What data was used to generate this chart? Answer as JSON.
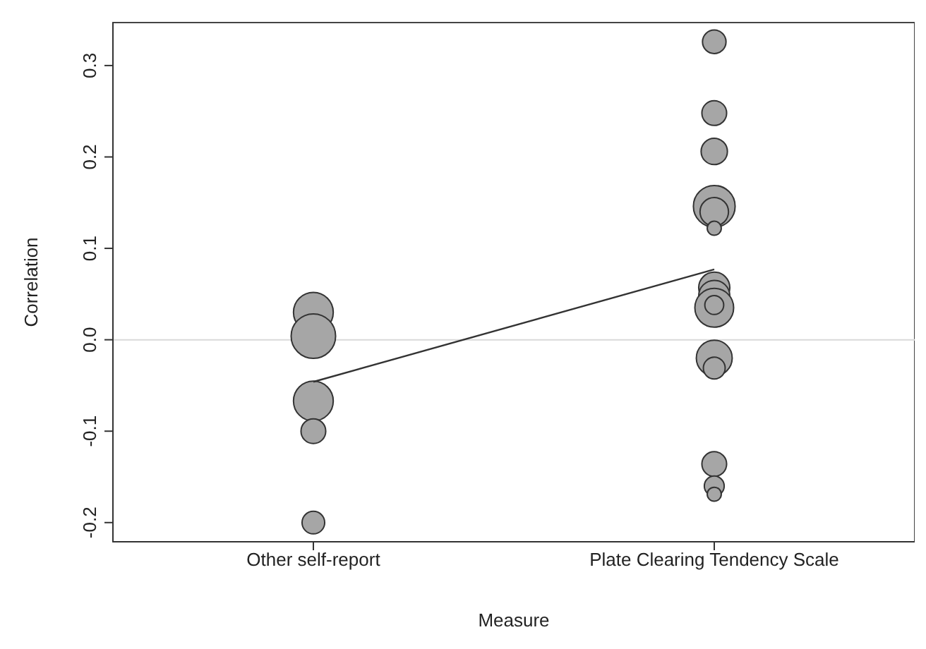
{
  "chart_data": {
    "type": "bubble",
    "xlabel": "Measure",
    "ylabel": "Correlation",
    "categories": [
      "Other self-report",
      "Plate Clearing Tendency Scale"
    ],
    "ylim": [
      -0.221,
      0.347
    ],
    "yticks": [
      -0.2,
      -0.1,
      {
        "value": 0,
        "label": "0.0"
      },
      0.1,
      0.2,
      0.3
    ],
    "ref_lines": [
      {
        "axis": "y",
        "value": 0,
        "color": "#d9d9d9"
      }
    ],
    "grid": false,
    "series": [
      {
        "color": "#a6a6a6",
        "marker": "circle",
        "x": [
          "Other self-report",
          "Other self-report",
          "Other self-report",
          "Other self-report",
          "Other self-report",
          "Plate Clearing Tendency Scale",
          "Plate Clearing Tendency Scale",
          "Plate Clearing Tendency Scale",
          "Plate Clearing Tendency Scale",
          "Plate Clearing Tendency Scale",
          "Plate Clearing Tendency Scale",
          "Plate Clearing Tendency Scale",
          "Plate Clearing Tendency Scale",
          "Plate Clearing Tendency Scale",
          "Plate Clearing Tendency Scale",
          "Plate Clearing Tendency Scale",
          "Plate Clearing Tendency Scale",
          "Plate Clearing Tendency Scale",
          "Plate Clearing Tendency Scale",
          "Plate Clearing Tendency Scale"
        ],
        "values": [
          0.03,
          0.004,
          -0.067,
          -0.1,
          -0.2,
          0.326,
          0.248,
          0.206,
          0.146,
          0.14,
          0.122,
          0.057,
          0.048,
          0.035,
          0.038,
          -0.02,
          -0.031,
          -0.136,
          -0.16,
          -0.169
        ],
        "sizes": [
          0.8,
          1,
          0.8,
          0.31,
          0.26,
          0.28,
          0.31,
          0.35,
          0.88,
          0.41,
          0.1,
          0.49,
          0.49,
          0.76,
          0.18,
          0.65,
          0.24,
          0.31,
          0.2,
          0.1
        ]
      },
      {
        "type": "line",
        "marker": "none",
        "color": "#333333",
        "x": [
          "Other self-report",
          "Plate Clearing Tendency Scale"
        ],
        "values": [
          -0.046,
          0.077
        ]
      }
    ]
  }
}
